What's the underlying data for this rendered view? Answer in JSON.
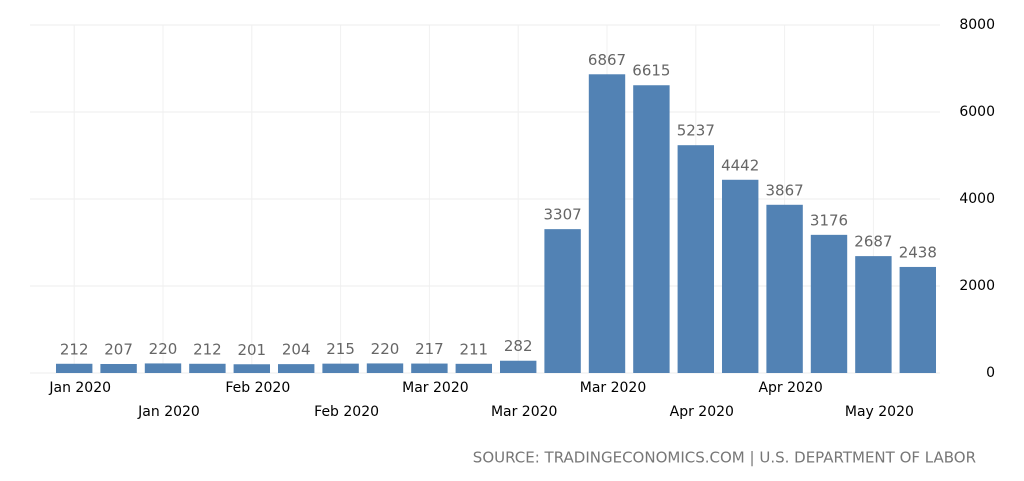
{
  "chart_data": {
    "type": "bar",
    "categories": [
      "Jan 2020",
      null,
      "Jan 2020",
      null,
      "Feb 2020",
      null,
      "Feb 2020",
      null,
      "Mar 2020",
      null,
      "Mar 2020",
      null,
      "Mar 2020",
      null,
      "Apr 2020",
      null,
      "Apr 2020",
      null,
      "May 2020",
      null
    ],
    "values": [
      212,
      207,
      220,
      212,
      201,
      204,
      215,
      220,
      217,
      211,
      282,
      3307,
      6867,
      6615,
      5237,
      4442,
      3867,
      3176,
      2687,
      2438
    ],
    "color": "#5282b4",
    "ylim": [
      0,
      8000
    ],
    "yticks": [
      0,
      2000,
      4000,
      6000,
      8000
    ],
    "grid": true,
    "source": "SOURCE: TRADINGECONOMICS.COM | U.S. DEPARTMENT OF LABOR"
  }
}
